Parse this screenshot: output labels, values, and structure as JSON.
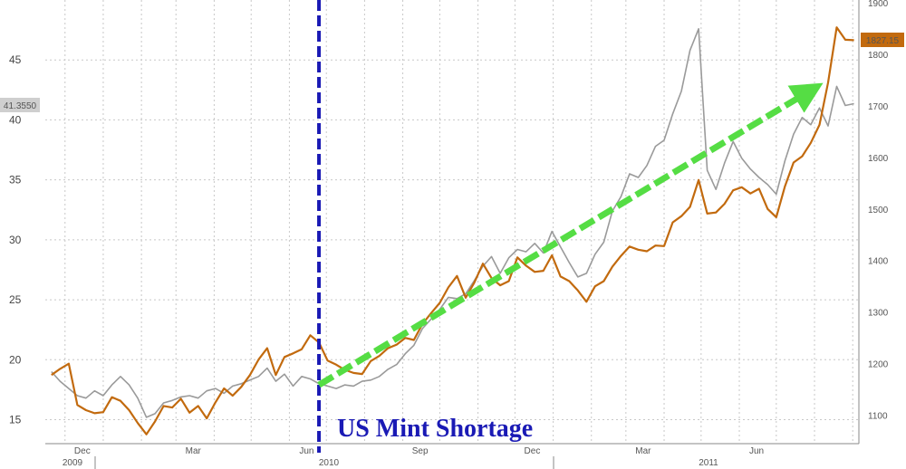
{
  "chart_data": {
    "type": "line",
    "title": "",
    "left_axis": {
      "ylim": [
        13,
        50
      ],
      "ticks": [
        15,
        20,
        25,
        30,
        35,
        40,
        45
      ]
    },
    "right_axis": {
      "ylim": [
        1045,
        1905
      ],
      "ticks": [
        1100,
        1200,
        1300,
        1400,
        1500,
        1600,
        1700,
        1800,
        1900
      ]
    },
    "x_tick_labels": [
      "Dec",
      "Mar",
      "Jun",
      "Sep",
      "Dec",
      "Mar",
      "Jun"
    ],
    "year_labels": [
      "2009",
      "2010",
      "2011"
    ],
    "grid": true,
    "last_value_labels": {
      "left": "41.3550",
      "right": "1827.15"
    },
    "annotation": {
      "text": "US Mint Shortage",
      "color": "#1a1ab5"
    },
    "trend_arrow": {
      "color": "#55dd44",
      "from": {
        "x": "2010-06-25",
        "y": 17.9
      },
      "to": {
        "x": "2011-07-28",
        "y": 42.4
      }
    },
    "series": [
      {
        "axis": "left",
        "color": "#9a9a9a",
        "points": [
          [
            "2009-11-20",
            19.0
          ],
          [
            "2009-11-27",
            18.2
          ],
          [
            "2009-12-04",
            17.6
          ],
          [
            "2009-12-11",
            17.0
          ],
          [
            "2009-12-18",
            16.8
          ],
          [
            "2009-12-25",
            17.4
          ],
          [
            "2010-01-01",
            17.0
          ],
          [
            "2010-01-08",
            17.9
          ],
          [
            "2010-01-15",
            18.6
          ],
          [
            "2010-01-22",
            17.9
          ],
          [
            "2010-01-29",
            16.8
          ],
          [
            "2010-02-05",
            15.2
          ],
          [
            "2010-02-12",
            15.5
          ],
          [
            "2010-02-19",
            16.4
          ],
          [
            "2010-02-26",
            16.6
          ],
          [
            "2010-03-05",
            16.9
          ],
          [
            "2010-03-12",
            17.0
          ],
          [
            "2010-03-19",
            16.8
          ],
          [
            "2010-03-26",
            17.4
          ],
          [
            "2010-04-02",
            17.6
          ],
          [
            "2010-04-09",
            17.2
          ],
          [
            "2010-04-16",
            17.8
          ],
          [
            "2010-04-23",
            18.0
          ],
          [
            "2010-04-30",
            18.3
          ],
          [
            "2010-05-07",
            18.6
          ],
          [
            "2010-05-14",
            19.3
          ],
          [
            "2010-05-21",
            18.2
          ],
          [
            "2010-05-28",
            18.8
          ],
          [
            "2010-06-04",
            17.8
          ],
          [
            "2010-06-11",
            18.6
          ],
          [
            "2010-06-18",
            18.4
          ],
          [
            "2010-06-25",
            18.0
          ],
          [
            "2010-07-02",
            17.8
          ],
          [
            "2010-07-09",
            17.6
          ],
          [
            "2010-07-16",
            17.9
          ],
          [
            "2010-07-23",
            17.8
          ],
          [
            "2010-07-30",
            18.2
          ],
          [
            "2010-08-06",
            18.3
          ],
          [
            "2010-08-13",
            18.6
          ],
          [
            "2010-08-20",
            19.2
          ],
          [
            "2010-08-27",
            19.6
          ],
          [
            "2010-09-03",
            20.5
          ],
          [
            "2010-09-10",
            21.2
          ],
          [
            "2010-09-17",
            22.6
          ],
          [
            "2010-09-24",
            23.4
          ],
          [
            "2010-10-01",
            24.2
          ],
          [
            "2010-10-08",
            25.2
          ],
          [
            "2010-10-15",
            25.1
          ],
          [
            "2010-10-22",
            25.5
          ],
          [
            "2010-10-29",
            26.6
          ],
          [
            "2010-11-05",
            27.8
          ],
          [
            "2010-11-12",
            28.6
          ],
          [
            "2010-11-19",
            27.2
          ],
          [
            "2010-11-26",
            28.5
          ],
          [
            "2010-12-03",
            29.2
          ],
          [
            "2010-12-10",
            29.0
          ],
          [
            "2010-12-17",
            29.7
          ],
          [
            "2010-12-24",
            28.9
          ],
          [
            "2010-12-31",
            30.7
          ],
          [
            "2011-01-07",
            29.4
          ],
          [
            "2011-01-14",
            28.1
          ],
          [
            "2011-01-21",
            26.9
          ],
          [
            "2011-01-28",
            27.2
          ],
          [
            "2011-02-04",
            28.8
          ],
          [
            "2011-02-11",
            29.8
          ],
          [
            "2011-02-18",
            32.4
          ],
          [
            "2011-02-25",
            33.6
          ],
          [
            "2011-03-04",
            35.5
          ],
          [
            "2011-03-11",
            35.2
          ],
          [
            "2011-03-18",
            36.2
          ],
          [
            "2011-03-25",
            37.8
          ],
          [
            "2011-04-01",
            38.3
          ],
          [
            "2011-04-08",
            40.5
          ],
          [
            "2011-04-15",
            42.4
          ],
          [
            "2011-04-22",
            45.8
          ],
          [
            "2011-04-29",
            47.6
          ],
          [
            "2011-05-06",
            35.8
          ],
          [
            "2011-05-13",
            34.2
          ],
          [
            "2011-05-20",
            36.4
          ],
          [
            "2011-05-27",
            38.2
          ],
          [
            "2011-06-03",
            36.8
          ],
          [
            "2011-06-10",
            35.9
          ],
          [
            "2011-06-17",
            35.2
          ],
          [
            "2011-06-24",
            34.6
          ],
          [
            "2011-07-01",
            33.8
          ],
          [
            "2011-07-08",
            36.6
          ],
          [
            "2011-07-15",
            38.8
          ],
          [
            "2011-07-22",
            40.2
          ],
          [
            "2011-07-29",
            39.6
          ],
          [
            "2011-08-05",
            41.0
          ],
          [
            "2011-08-12",
            39.5
          ],
          [
            "2011-08-19",
            42.8
          ],
          [
            "2011-08-26",
            41.2
          ],
          [
            "2011-09-02",
            41.355
          ]
        ]
      },
      {
        "axis": "right",
        "color": "#c26a0e",
        "points": [
          [
            "2009-11-20",
            1178
          ],
          [
            "2009-11-27",
            1190
          ],
          [
            "2009-12-04",
            1200
          ],
          [
            "2009-12-11",
            1120
          ],
          [
            "2009-12-18",
            1110
          ],
          [
            "2009-12-25",
            1104
          ],
          [
            "2010-01-01",
            1106
          ],
          [
            "2010-01-08",
            1135
          ],
          [
            "2010-01-15",
            1128
          ],
          [
            "2010-01-22",
            1110
          ],
          [
            "2010-01-29",
            1085
          ],
          [
            "2010-02-05",
            1063
          ],
          [
            "2010-02-12",
            1088
          ],
          [
            "2010-02-19",
            1118
          ],
          [
            "2010-02-26",
            1115
          ],
          [
            "2010-03-05",
            1132
          ],
          [
            "2010-03-12",
            1105
          ],
          [
            "2010-03-19",
            1118
          ],
          [
            "2010-03-26",
            1094
          ],
          [
            "2010-04-02",
            1125
          ],
          [
            "2010-04-09",
            1152
          ],
          [
            "2010-04-16",
            1138
          ],
          [
            "2010-04-23",
            1155
          ],
          [
            "2010-04-30",
            1178
          ],
          [
            "2010-05-07",
            1208
          ],
          [
            "2010-05-14",
            1230
          ],
          [
            "2010-05-21",
            1178
          ],
          [
            "2010-05-28",
            1213
          ],
          [
            "2010-06-04",
            1220
          ],
          [
            "2010-06-11",
            1228
          ],
          [
            "2010-06-18",
            1255
          ],
          [
            "2010-06-25",
            1241
          ],
          [
            "2010-07-02",
            1206
          ],
          [
            "2010-07-09",
            1198
          ],
          [
            "2010-07-16",
            1188
          ],
          [
            "2010-07-23",
            1182
          ],
          [
            "2010-07-30",
            1180
          ],
          [
            "2010-08-06",
            1205
          ],
          [
            "2010-08-13",
            1215
          ],
          [
            "2010-08-20",
            1230
          ],
          [
            "2010-08-27",
            1237
          ],
          [
            "2010-09-03",
            1250
          ],
          [
            "2010-09-10",
            1246
          ],
          [
            "2010-09-17",
            1277
          ],
          [
            "2010-09-24",
            1298
          ],
          [
            "2010-10-01",
            1318
          ],
          [
            "2010-10-08",
            1348
          ],
          [
            "2010-10-15",
            1370
          ],
          [
            "2010-10-22",
            1328
          ],
          [
            "2010-10-29",
            1357
          ],
          [
            "2010-11-05",
            1394
          ],
          [
            "2010-11-12",
            1366
          ],
          [
            "2010-11-19",
            1352
          ],
          [
            "2010-11-26",
            1360
          ],
          [
            "2010-12-03",
            1406
          ],
          [
            "2010-12-10",
            1390
          ],
          [
            "2010-12-17",
            1378
          ],
          [
            "2010-12-24",
            1380
          ],
          [
            "2010-12-31",
            1410
          ],
          [
            "2011-01-07",
            1369
          ],
          [
            "2011-01-14",
            1360
          ],
          [
            "2011-01-21",
            1342
          ],
          [
            "2011-01-28",
            1320
          ],
          [
            "2011-02-04",
            1350
          ],
          [
            "2011-02-11",
            1360
          ],
          [
            "2011-02-18",
            1388
          ],
          [
            "2011-02-25",
            1409
          ],
          [
            "2011-03-04",
            1427
          ],
          [
            "2011-03-11",
            1421
          ],
          [
            "2011-03-18",
            1418
          ],
          [
            "2011-03-25",
            1429
          ],
          [
            "2011-04-01",
            1428
          ],
          [
            "2011-04-08",
            1474
          ],
          [
            "2011-04-15",
            1486
          ],
          [
            "2011-04-22",
            1504
          ],
          [
            "2011-04-29",
            1556
          ],
          [
            "2011-05-06",
            1491
          ],
          [
            "2011-05-13",
            1493
          ],
          [
            "2011-05-20",
            1510
          ],
          [
            "2011-05-27",
            1536
          ],
          [
            "2011-06-03",
            1542
          ],
          [
            "2011-06-10",
            1530
          ],
          [
            "2011-06-17",
            1539
          ],
          [
            "2011-06-24",
            1500
          ],
          [
            "2011-07-01",
            1484
          ],
          [
            "2011-07-08",
            1544
          ],
          [
            "2011-07-15",
            1590
          ],
          [
            "2011-07-22",
            1602
          ],
          [
            "2011-07-29",
            1628
          ],
          [
            "2011-08-05",
            1663
          ],
          [
            "2011-08-12",
            1745
          ],
          [
            "2011-08-19",
            1852
          ],
          [
            "2011-08-26",
            1828
          ],
          [
            "2011-09-02",
            1827.15
          ]
        ]
      }
    ]
  }
}
